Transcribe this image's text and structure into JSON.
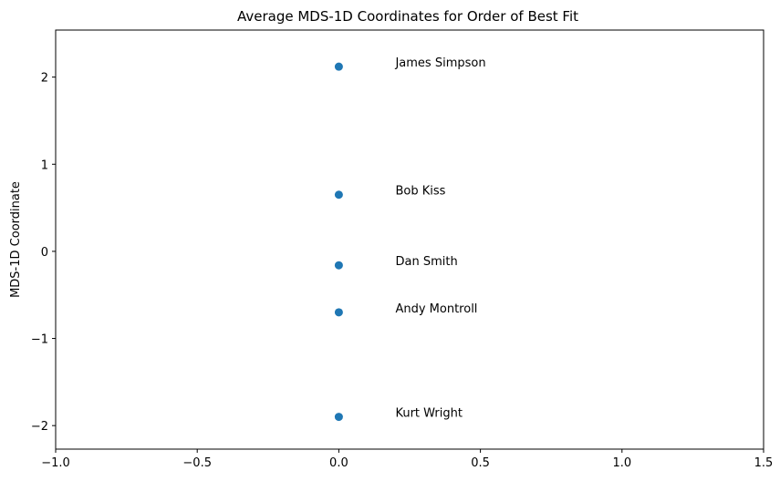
{
  "chart_data": {
    "type": "scatter",
    "title": "Average MDS-1D Coordinates for Order of Best Fit",
    "xlabel": "",
    "ylabel": "MDS-1D Coordinate",
    "xlim": [
      -1.0,
      1.5
    ],
    "ylim": [
      -2.27,
      2.54
    ],
    "x_ticks": [
      -1.0,
      -0.5,
      0.0,
      0.5,
      1.0,
      1.5
    ],
    "x_tick_labels": [
      "−1.0",
      "−0.5",
      "0.0",
      "0.5",
      "1.0",
      "1.5"
    ],
    "y_ticks": [
      -2,
      -1,
      0,
      1,
      2
    ],
    "y_tick_labels": [
      "−2",
      "−1",
      "0",
      "1",
      "2"
    ],
    "grid": false,
    "marker_color": "#1f77b4",
    "points": [
      {
        "label": "James Simpson",
        "x": 0.0,
        "y": 2.12
      },
      {
        "label": "Bob Kiss",
        "x": 0.0,
        "y": 0.65
      },
      {
        "label": "Dan Smith",
        "x": 0.0,
        "y": -0.16
      },
      {
        "label": "Andy Montroll",
        "x": 0.0,
        "y": -0.7
      },
      {
        "label": "Kurt Wright",
        "x": 0.0,
        "y": -1.9
      }
    ]
  }
}
